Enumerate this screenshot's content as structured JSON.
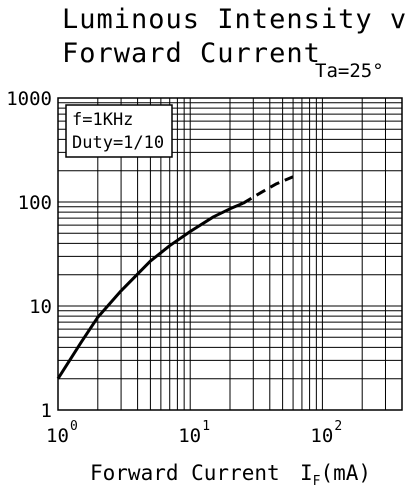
{
  "chart_data": {
    "type": "line",
    "title_line1": "Luminous Intensity vs",
    "title_line2": "Forward Current",
    "condition": "Ta=25°",
    "xlabel": "Forward Current",
    "xlabel_symbol": "I",
    "xlabel_subscript": "F",
    "xlabel_unit": "(mA)",
    "x_scale": "log",
    "y_scale": "log",
    "xlim": [
      1,
      400
    ],
    "ylim": [
      1,
      1000
    ],
    "y_ticks": [
      1,
      10,
      100,
      1000
    ],
    "y_tick_labels": [
      "1",
      "10",
      "100",
      "1000"
    ],
    "x_ticks": [
      1,
      10,
      100
    ],
    "x_tick_bases": [
      "10",
      "10",
      "10"
    ],
    "x_tick_exponents": [
      "0",
      "1",
      "2"
    ],
    "grid": true,
    "legend_lines": [
      "f=1KHz",
      "Duty=1/10"
    ],
    "legend_placement": "top-left",
    "series": [
      {
        "style": "solid",
        "x": [
          1,
          1.5,
          2,
          3,
          5,
          7,
          10,
          15,
          20,
          25
        ],
        "y": [
          2,
          4.5,
          7.8,
          14,
          27,
          38,
          52,
          72,
          86,
          97
        ]
      },
      {
        "style": "dashed",
        "x": [
          25,
          35,
          45,
          60
        ],
        "y": [
          97,
          125,
          150,
          175
        ]
      }
    ]
  }
}
